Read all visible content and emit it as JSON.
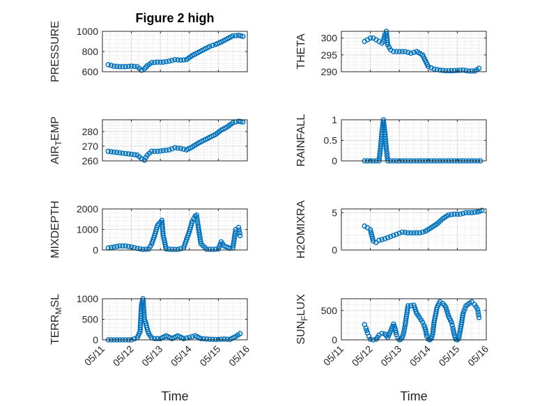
{
  "figure": {
    "title": "Figure 2 high",
    "marker_color": "#0072BD",
    "grid": true,
    "x_ticklabels": [
      "05/11",
      "05/12",
      "05/13",
      "05/14",
      "05/15",
      "05/16"
    ]
  },
  "chart_data": [
    {
      "type": "scatter",
      "title": "Figure 2 high",
      "ylabel": "PRESSURE",
      "xlabel": "",
      "xlim": [
        0,
        5
      ],
      "ylim": [
        600,
        1000
      ],
      "yticks": [
        600,
        800,
        1000
      ],
      "x": [
        0.2,
        0.4,
        0.6,
        0.8,
        1.0,
        1.2,
        1.35,
        1.45,
        1.55,
        1.7,
        1.9,
        2.1,
        2.3,
        2.5,
        2.7,
        2.9,
        3.1,
        3.3,
        3.5,
        3.7,
        3.9,
        4.1,
        4.3,
        4.5,
        4.7,
        4.85
      ],
      "y": [
        670,
        655,
        650,
        650,
        655,
        650,
        615,
        630,
        660,
        690,
        695,
        695,
        705,
        720,
        715,
        720,
        760,
        790,
        820,
        850,
        870,
        895,
        925,
        955,
        960,
        950
      ]
    },
    {
      "type": "scatter",
      "ylabel": "THETA",
      "xlabel": "",
      "xlim": [
        0,
        5
      ],
      "ylim": [
        290,
        302
      ],
      "yticks": [
        290,
        295,
        300
      ],
      "x": [
        0.8,
        0.9,
        1.0,
        1.1,
        1.2,
        1.3,
        1.4,
        1.45,
        1.5,
        1.55,
        1.6,
        1.7,
        1.8,
        1.9,
        2.0,
        2.2,
        2.4,
        2.6,
        2.8,
        3.0,
        3.2,
        3.4,
        3.6,
        3.8,
        4.0,
        4.2,
        4.4,
        4.6,
        4.75
      ],
      "y": [
        299,
        299.5,
        300,
        300,
        299.5,
        299,
        298.5,
        299,
        301,
        302,
        298,
        296.5,
        296,
        296,
        296,
        296,
        295.5,
        296,
        295,
        291.5,
        290.8,
        290.5,
        290.3,
        290.3,
        290.4,
        290.5,
        290.2,
        290.2,
        291
      ]
    },
    {
      "type": "scatter",
      "ylabel": "AIR_TEMP",
      "xlabel": "",
      "xlim": [
        0,
        5
      ],
      "ylim": [
        260,
        288
      ],
      "yticks": [
        260,
        270,
        280
      ],
      "x": [
        0.2,
        0.4,
        0.6,
        0.8,
        1.0,
        1.2,
        1.35,
        1.45,
        1.55,
        1.7,
        1.9,
        2.1,
        2.3,
        2.5,
        2.7,
        2.9,
        3.1,
        3.3,
        3.5,
        3.7,
        3.9,
        4.1,
        4.3,
        4.5,
        4.7,
        4.85
      ],
      "y": [
        266.5,
        266,
        265.5,
        265,
        264.5,
        264,
        261.5,
        260.5,
        264,
        266.5,
        266.5,
        267,
        267.5,
        269,
        268.5,
        267.5,
        269.5,
        272,
        274,
        276,
        278,
        281,
        283,
        286,
        287,
        286.5
      ]
    },
    {
      "type": "scatter",
      "ylabel": "RAINFALL",
      "xlabel": "",
      "xlim": [
        0,
        5
      ],
      "ylim": [
        0,
        1
      ],
      "yticks": [
        0,
        0.5,
        1
      ],
      "x": [
        0.8,
        1.0,
        1.2,
        1.3,
        1.35,
        1.4,
        1.45,
        1.5,
        1.55,
        1.6,
        1.8,
        2.0,
        2.2,
        2.4,
        2.6,
        2.8,
        3.0,
        3.2,
        3.4,
        3.6,
        3.8,
        4.0,
        4.2,
        4.4,
        4.6,
        4.8
      ],
      "y": [
        0,
        0,
        0,
        0,
        0.3,
        0.7,
        1.0,
        0.7,
        0.3,
        0,
        0,
        0,
        0,
        0,
        0,
        0,
        0,
        0,
        0,
        0,
        0,
        0,
        0,
        0,
        0,
        0
      ]
    },
    {
      "type": "scatter",
      "ylabel": "MIXDEPTH",
      "xlabel": "",
      "xlim": [
        0,
        5
      ],
      "ylim": [
        0,
        2000
      ],
      "yticks": [
        0,
        1000,
        2000
      ],
      "x": [
        0.2,
        0.4,
        0.6,
        0.8,
        1.0,
        1.2,
        1.4,
        1.6,
        1.7,
        1.8,
        1.9,
        2.0,
        2.05,
        2.1,
        2.2,
        2.4,
        2.6,
        2.8,
        2.9,
        3.0,
        3.1,
        3.2,
        3.25,
        3.3,
        3.4,
        3.6,
        3.8,
        4.0,
        4.1,
        4.2,
        4.4,
        4.5,
        4.6,
        4.7,
        4.75
      ],
      "y": [
        100,
        150,
        200,
        200,
        150,
        80,
        30,
        50,
        300,
        700,
        1200,
        1350,
        1450,
        700,
        50,
        30,
        30,
        100,
        500,
        900,
        1400,
        1650,
        1700,
        1200,
        300,
        40,
        30,
        50,
        400,
        200,
        80,
        100,
        1000,
        1100,
        700
      ]
    },
    {
      "type": "scatter",
      "ylabel": "H2OMIXRA",
      "xlabel": "",
      "xlim": [
        0,
        5
      ],
      "ylim": [
        0,
        5.5
      ],
      "yticks": [
        0,
        5
      ],
      "x": [
        0.8,
        0.9,
        1.0,
        1.1,
        1.2,
        1.3,
        1.4,
        1.5,
        1.7,
        1.9,
        2.1,
        2.3,
        2.5,
        2.7,
        2.9,
        3.1,
        3.3,
        3.5,
        3.7,
        3.9,
        4.1,
        4.3,
        4.5,
        4.7,
        4.85
      ],
      "y": [
        3.2,
        3.0,
        2.7,
        1.2,
        1.0,
        1.3,
        1.4,
        1.5,
        1.8,
        2.1,
        2.4,
        2.3,
        2.3,
        2.3,
        2.5,
        3.0,
        3.5,
        4.2,
        4.7,
        4.8,
        4.8,
        5.0,
        5.0,
        5.1,
        5.3
      ]
    },
    {
      "type": "scatter",
      "ylabel": "TERR_MSL",
      "xlabel": "Time",
      "xlim": [
        0,
        5
      ],
      "ylim": [
        0,
        1000
      ],
      "yticks": [
        0,
        500,
        1000
      ],
      "x": [
        0.2,
        0.4,
        0.6,
        0.8,
        1.0,
        1.2,
        1.3,
        1.35,
        1.4,
        1.45,
        1.5,
        1.55,
        1.6,
        1.7,
        1.8,
        2.0,
        2.2,
        2.4,
        2.6,
        2.8,
        3.0,
        3.2,
        3.4,
        3.6,
        3.8,
        4.0,
        4.2,
        4.4,
        4.6,
        4.75
      ],
      "y": [
        0,
        0,
        0,
        0,
        0,
        50,
        200,
        850,
        1000,
        500,
        400,
        250,
        150,
        50,
        30,
        30,
        100,
        30,
        100,
        30,
        60,
        100,
        30,
        20,
        10,
        10,
        20,
        10,
        80,
        150
      ]
    },
    {
      "type": "scatter",
      "ylabel": "SUN_FLUX",
      "xlabel": "Time",
      "xlim": [
        0,
        5
      ],
      "ylim": [
        0,
        700
      ],
      "yticks": [
        0,
        500
      ],
      "x": [
        0.8,
        0.85,
        0.9,
        0.95,
        1.0,
        1.1,
        1.2,
        1.3,
        1.4,
        1.5,
        1.6,
        1.7,
        1.8,
        1.85,
        1.9,
        1.95,
        2.0,
        2.05,
        2.1,
        2.15,
        2.2,
        2.3,
        2.5,
        2.6,
        2.7,
        2.8,
        2.85,
        2.9,
        2.95,
        3.0,
        3.05,
        3.1,
        3.15,
        3.2,
        3.3,
        3.4,
        3.5,
        3.6,
        3.7,
        3.8,
        3.85,
        3.9,
        3.95,
        4.0,
        4.05,
        4.1,
        4.2,
        4.3,
        4.5,
        4.6,
        4.7,
        4.75
      ],
      "y": [
        260,
        200,
        120,
        60,
        10,
        0,
        10,
        80,
        110,
        100,
        40,
        150,
        270,
        200,
        90,
        30,
        0,
        10,
        40,
        120,
        250,
        580,
        590,
        450,
        380,
        300,
        250,
        180,
        60,
        10,
        0,
        20,
        100,
        300,
        550,
        650,
        620,
        560,
        400,
        300,
        200,
        80,
        10,
        0,
        20,
        150,
        450,
        580,
        650,
        600,
        520,
        380
      ]
    }
  ]
}
